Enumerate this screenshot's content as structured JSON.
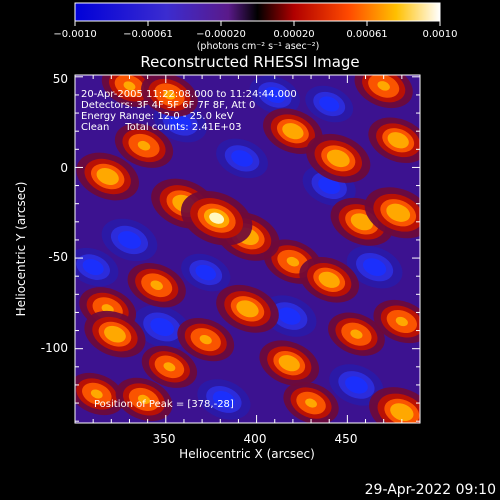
{
  "colorbar": {
    "tick_labels": [
      "−0.0010",
      "−0.00061",
      "−0.00020",
      "0.00020",
      "0.00061",
      "0.0010"
    ],
    "unit_label": "(photons cm⁻² s⁻¹ asec⁻²)",
    "range": [
      -0.001,
      0.001
    ]
  },
  "chart_data": {
    "type": "heatmap",
    "title": "Reconstructed RHESSI Image",
    "xlabel": "Heliocentric X (arcsec)",
    "ylabel": "Heliocentric Y (arcsec)",
    "xlim": [
      300,
      490
    ],
    "ylim": [
      -141,
      51
    ],
    "x_ticks": [
      350,
      400,
      450
    ],
    "y_ticks": [
      50,
      0,
      -50,
      -100
    ],
    "annotations": [
      "20-Apr-2005 11:22:08.000 to 11:24:44.000",
      "Detectors: 3F 4F 5F 6F 7F 8F, Att 0",
      "Energy Range: 12.0 - 25.0 keV",
      "Clean     Total counts: 2.41E+03"
    ],
    "peak_label": "Position of Peak = [378,-28]",
    "peak_position": [
      378,
      -28
    ],
    "blobs": [
      {
        "x": 378,
        "y": -28,
        "v": 1.0
      },
      {
        "x": 360,
        "y": -20,
        "v": 0.8
      },
      {
        "x": 395,
        "y": -38,
        "v": 0.75
      },
      {
        "x": 318,
        "y": -5,
        "v": 0.7
      },
      {
        "x": 338,
        "y": 12,
        "v": 0.55
      },
      {
        "x": 352,
        "y": 40,
        "v": 0.5
      },
      {
        "x": 330,
        "y": 45,
        "v": 0.45
      },
      {
        "x": 420,
        "y": 20,
        "v": 0.6
      },
      {
        "x": 445,
        "y": 5,
        "v": 0.75
      },
      {
        "x": 470,
        "y": 45,
        "v": 0.55
      },
      {
        "x": 478,
        "y": 15,
        "v": 0.6
      },
      {
        "x": 478,
        "y": -25,
        "v": 0.85
      },
      {
        "x": 458,
        "y": -30,
        "v": 0.7
      },
      {
        "x": 420,
        "y": -52,
        "v": 0.55
      },
      {
        "x": 440,
        "y": -62,
        "v": 0.6
      },
      {
        "x": 345,
        "y": -65,
        "v": 0.55
      },
      {
        "x": 395,
        "y": -78,
        "v": 0.7
      },
      {
        "x": 372,
        "y": -95,
        "v": 0.5
      },
      {
        "x": 318,
        "y": -78,
        "v": 0.5
      },
      {
        "x": 322,
        "y": -92,
        "v": 0.65
      },
      {
        "x": 352,
        "y": -110,
        "v": 0.45
      },
      {
        "x": 418,
        "y": -108,
        "v": 0.6
      },
      {
        "x": 455,
        "y": -92,
        "v": 0.5
      },
      {
        "x": 480,
        "y": -85,
        "v": 0.5
      },
      {
        "x": 480,
        "y": -135,
        "v": 0.8
      },
      {
        "x": 430,
        "y": -130,
        "v": 0.45
      },
      {
        "x": 338,
        "y": -128,
        "v": 0.5
      },
      {
        "x": 312,
        "y": -125,
        "v": 0.45
      },
      {
        "x": 330,
        "y": -40,
        "v": -0.7
      },
      {
        "x": 358,
        "y": 25,
        "v": -0.6
      },
      {
        "x": 392,
        "y": 5,
        "v": -0.55
      },
      {
        "x": 440,
        "y": -10,
        "v": -0.6
      },
      {
        "x": 465,
        "y": -55,
        "v": -0.7
      },
      {
        "x": 418,
        "y": -82,
        "v": -0.65
      },
      {
        "x": 348,
        "y": -88,
        "v": -0.75
      },
      {
        "x": 382,
        "y": -128,
        "v": -0.6
      },
      {
        "x": 455,
        "y": -120,
        "v": -0.65
      },
      {
        "x": 310,
        "y": -55,
        "v": -0.5
      },
      {
        "x": 410,
        "y": 40,
        "v": -0.5
      },
      {
        "x": 440,
        "y": 35,
        "v": -0.4
      },
      {
        "x": 372,
        "y": -58,
        "v": -0.45
      }
    ]
  },
  "footer": {
    "timestamp": "29-Apr-2022 09:10"
  }
}
